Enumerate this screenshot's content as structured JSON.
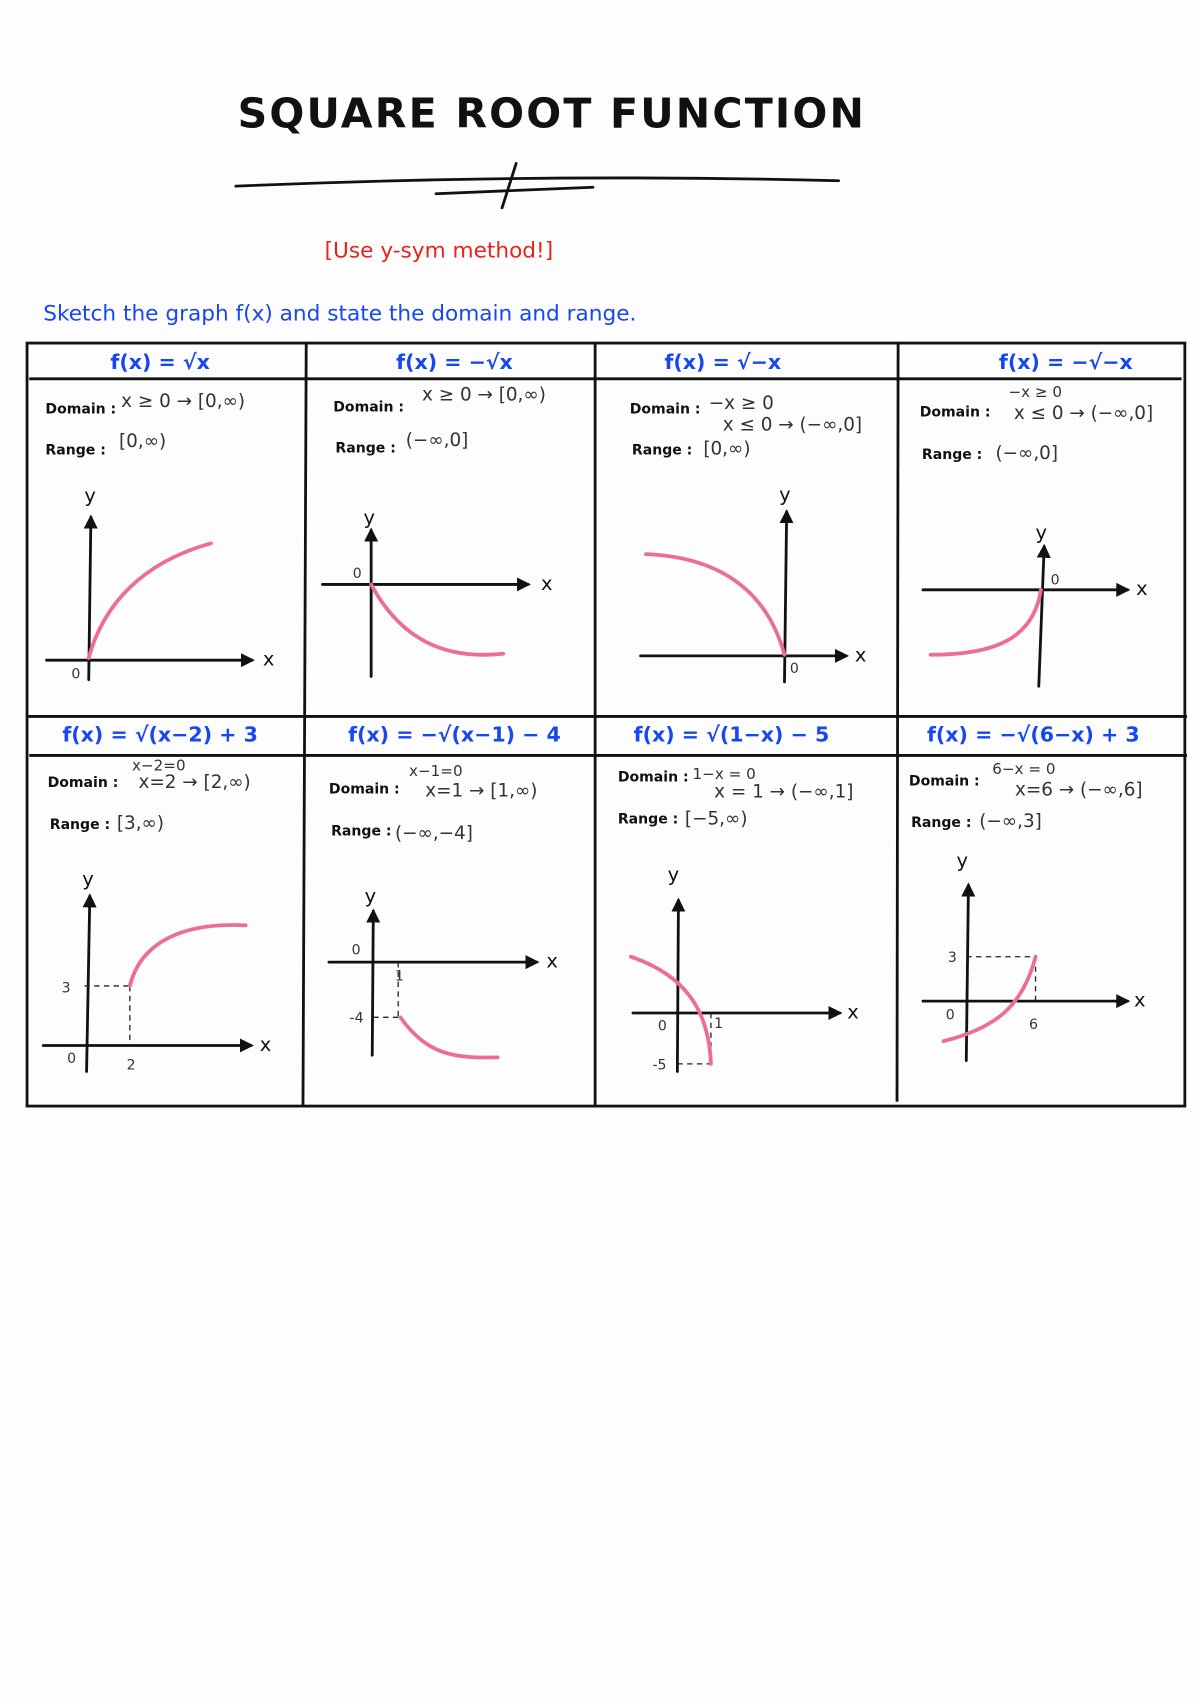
{
  "title": "SQUARE ROOT FUNCTION",
  "note": "[Use y-sym method!]",
  "instruction": "Sketch the graph f(x) and state the domain and range.",
  "colors": {
    "formula": "#1747f0",
    "note": "#e8231e",
    "curve": "#ec6f93"
  },
  "labels": {
    "domain": "Domain :",
    "range": "Range :"
  },
  "cells": [
    {
      "formula": "f(x) = √x",
      "domain": [
        "x ≥ 0 → [0,∞)"
      ],
      "range": "[0,∞)",
      "graph": {
        "y": "y",
        "x": "x",
        "origin": "0"
      }
    },
    {
      "formula": "f(x) = −√x",
      "domain": [
        "x ≥ 0 → [0,∞)"
      ],
      "range": "(−∞,0]",
      "graph": {
        "y": "y",
        "x": "x",
        "origin": "0"
      }
    },
    {
      "formula": "f(x) = √−x",
      "domain": [
        "−x ≥ 0",
        "x ≤ 0 → (−∞,0]"
      ],
      "range": "[0,∞)",
      "graph": {
        "y": "y",
        "x": "x",
        "origin": "0"
      }
    },
    {
      "formula": "f(x) = −√−x",
      "domain": [
        "−x ≥ 0",
        "x ≤ 0 → (−∞,0]"
      ],
      "range": "(−∞,0]",
      "graph": {
        "y": "y",
        "x": "x",
        "origin": "0"
      }
    },
    {
      "formula": "f(x) = √(x−2) + 3",
      "domain": [
        "x−2=0",
        "x=2 → [2,∞)"
      ],
      "range": "[3,∞)",
      "graph": {
        "y": "y",
        "x": "x",
        "origin": "0",
        "ticks": [
          "3",
          "2"
        ]
      }
    },
    {
      "formula": "f(x) = −√(x−1) − 4",
      "domain": [
        "x−1=0",
        "x=1 → [1,∞)"
      ],
      "range": "(−∞,−4]",
      "graph": {
        "y": "y",
        "x": "x",
        "origin": "0",
        "ticks": [
          "-4",
          "1"
        ]
      }
    },
    {
      "formula": "f(x) = √(1−x) − 5",
      "domain": [
        "1−x = 0",
        "x = 1 → (−∞,1]"
      ],
      "range": "[−5,∞)",
      "graph": {
        "y": "y",
        "x": "x",
        "origin": "0",
        "ticks": [
          "1",
          "-5"
        ]
      }
    },
    {
      "formula": "f(x) = −√(6−x) + 3",
      "domain": [
        "6−x = 0",
        "x=6 → (−∞,6]"
      ],
      "range": "(−∞,3]",
      "graph": {
        "y": "y",
        "x": "x",
        "origin": "0",
        "ticks": [
          "3",
          "6"
        ]
      }
    }
  ]
}
